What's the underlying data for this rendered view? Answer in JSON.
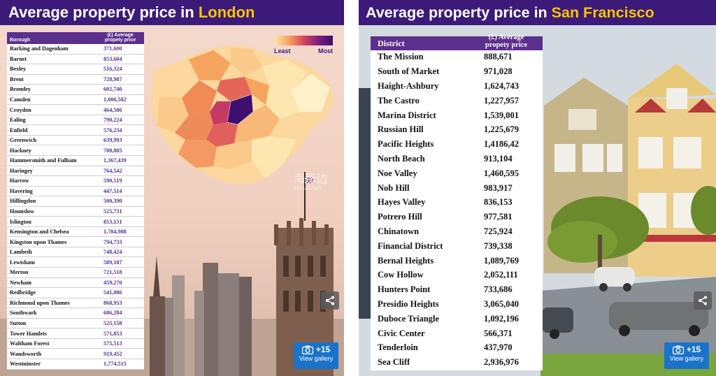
{
  "london": {
    "title_prefix": "Average property price in ",
    "title_city": "London",
    "legend": {
      "least": "Least",
      "most": "Most"
    },
    "gallery": {
      "count": "+15",
      "label": "View gallery"
    }
  },
  "sf": {
    "title_prefix": "Average property price in ",
    "title_city": "San Francisco",
    "gallery": {
      "count": "+15",
      "label": "View gallery"
    }
  },
  "watermark": {
    "line1": "海那边",
    "line2": "Hinabian"
  },
  "colors": {
    "title_bg": "#3c1a7a",
    "title_city": "#f6c500",
    "table_header": "#5b2f8c",
    "gallery_button": "#1a73c9"
  },
  "icons": [
    "share-icon",
    "camera-icon",
    "union-flag-icon"
  ],
  "chart_data": [
    {
      "type": "table",
      "header": {
        "name": "Borough",
        "price_line1": "(£) Average",
        "price_line2": "propety price"
      },
      "rows": [
        {
          "name": "Barking and Dagenham",
          "price": "371,600"
        },
        {
          "name": "Barnet",
          "price": "853,604"
        },
        {
          "name": "Bexley",
          "price": "516,324"
        },
        {
          "name": "Brent",
          "price": "728,987"
        },
        {
          "name": "Bromley",
          "price": "602,740"
        },
        {
          "name": "Camden",
          "price": "1,006,582"
        },
        {
          "name": "Croydon",
          "price": "464,586"
        },
        {
          "name": "Ealing",
          "price": "790,224"
        },
        {
          "name": "Enfield",
          "price": "576,234"
        },
        {
          "name": "Greenwich",
          "price": "639,993"
        },
        {
          "name": "Hackney",
          "price": "708,885"
        },
        {
          "name": "Hammersmith and Fulham",
          "price": "1,367,439"
        },
        {
          "name": "Haringey",
          "price": "764,542"
        },
        {
          "name": "Harrow",
          "price": "590,519"
        },
        {
          "name": "Havering",
          "price": "447,514"
        },
        {
          "name": "Hillingdon",
          "price": "500,390"
        },
        {
          "name": "Hounslow",
          "price": "525,731"
        },
        {
          "name": "Islington",
          "price": "853,151"
        },
        {
          "name": "Kensington and Chelsea",
          "price": "1,784,988"
        },
        {
          "name": "Kingston upon Thames",
          "price": "794,733"
        },
        {
          "name": "Lambeth",
          "price": "748,424"
        },
        {
          "name": "Lewisham",
          "price": "589,187"
        },
        {
          "name": "Merton",
          "price": "721,518"
        },
        {
          "name": "Newham",
          "price": "459,270"
        },
        {
          "name": "Redbridge",
          "price": "541,086"
        },
        {
          "name": "Richmond upon Thames",
          "price": "868,953"
        },
        {
          "name": "Southwark",
          "price": "686,284"
        },
        {
          "name": "Sutton",
          "price": "525,158"
        },
        {
          "name": "Tower Hamlets",
          "price": "571,853"
        },
        {
          "name": "Waltham Forest",
          "price": "575,513"
        },
        {
          "name": "Wandsworth",
          "price": "919,452"
        },
        {
          "name": "Westminster",
          "price": "1,774,515"
        }
      ]
    },
    {
      "type": "table",
      "header": {
        "name": "District",
        "price_line1": "(£) Average",
        "price_line2": "propety price"
      },
      "rows": [
        {
          "name": "The Mission",
          "price": "888,671"
        },
        {
          "name": "South of Market",
          "price": "971,028"
        },
        {
          "name": "Haight-Ashbury",
          "price": "1,624,743"
        },
        {
          "name": "The Castro",
          "price": "1,227,957"
        },
        {
          "name": "Marina District",
          "price": "1,539,001"
        },
        {
          "name": "Russian Hill",
          "price": "1,225,679"
        },
        {
          "name": "Pacific Heights",
          "price": "1,4186,42"
        },
        {
          "name": "North Beach",
          "price": "913,104"
        },
        {
          "name": "Noe Valley",
          "price": "1,460,595"
        },
        {
          "name": "Nob Hill",
          "price": "983,917"
        },
        {
          "name": "Hayes Valley",
          "price": "836,153"
        },
        {
          "name": "Potrero Hill",
          "price": "977,581"
        },
        {
          "name": "Chinatown",
          "price": "725,924"
        },
        {
          "name": "Financial District",
          "price": "739,338"
        },
        {
          "name": "Bernal Heights",
          "price": "1,089,769"
        },
        {
          "name": "Cow Hollow",
          "price": "2,052,111"
        },
        {
          "name": "Hunters Point",
          "price": "733,686"
        },
        {
          "name": "Presidio Heights",
          "price": "3,065,040"
        },
        {
          "name": "Duboce Triangle",
          "price": "1,092,196"
        },
        {
          "name": "Civic Center",
          "price": "566,371"
        },
        {
          "name": "Tenderloin",
          "price": "437,970"
        },
        {
          "name": "Sea Cliff",
          "price": "2,936,976"
        }
      ]
    }
  ]
}
